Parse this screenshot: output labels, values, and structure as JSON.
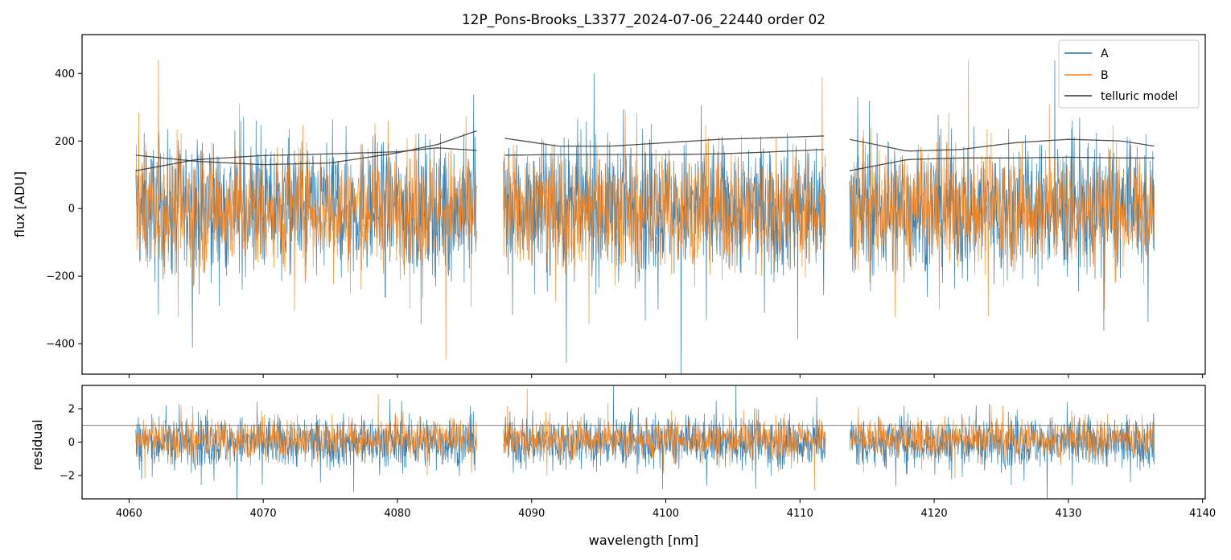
{
  "chart_data": {
    "type": "line",
    "title": "12P_Pons-Brooks_L3377_2024-07-06_22440  order 02",
    "xlabel": "wavelength [nm]",
    "x_ticks": [
      4060,
      4070,
      4080,
      4090,
      4100,
      4110,
      4120,
      4130,
      4140
    ],
    "xlim": [
      4056.5,
      4140.2
    ],
    "segments": [
      [
        4060.5,
        4085.9
      ],
      [
        4087.9,
        4111.9
      ],
      [
        4113.7,
        4136.4
      ]
    ],
    "series_colors": {
      "A": "#1f77b4",
      "B": "#ff7f0e",
      "telluric model": "#333333"
    },
    "legend": {
      "placement": "top-right",
      "entries": [
        "A",
        "B",
        "telluric model"
      ]
    },
    "panels": [
      {
        "name": "flux",
        "ylabel": "flux [ADU]",
        "ylim": [
          -490,
          515
        ],
        "y_ticks": [
          400,
          200,
          0,
          -200,
          -400
        ],
        "y_tick_labels": [
          "400",
          "200",
          "0",
          "−200",
          "−400"
        ],
        "series": [
          {
            "name": "A",
            "color": "#1f77b4",
            "noise_spread": 180,
            "center": 0
          },
          {
            "name": "B",
            "color": "#ff7f0e",
            "noise_spread": 160,
            "center": 0
          }
        ],
        "telluric_model": [
          {
            "segment": 0,
            "x": [
              4060.5,
              4065,
              4070,
              4075,
              4080,
              4083,
              4085.9
            ],
            "y": [
              112,
              145,
              157,
              162,
              168,
              180,
              172
            ]
          },
          {
            "segment": 0,
            "x": [
              4060.5,
              4065,
              4070,
              4075,
              4080,
              4083,
              4085.9
            ],
            "y": [
              158,
              140,
              130,
              135,
              165,
              190,
              230
            ]
          },
          {
            "segment": 1,
            "x": [
              4088,
              4092,
              4096,
              4100,
              4104,
              4108,
              4111.8
            ],
            "y": [
              208,
              185,
              185,
              195,
              205,
              210,
              215
            ]
          },
          {
            "segment": 1,
            "x": [
              4088,
              4092,
              4096,
              4100,
              4104,
              4108,
              4111.8
            ],
            "y": [
              158,
              160,
              160,
              160,
              162,
              168,
              175
            ]
          },
          {
            "segment": 2,
            "x": [
              4113.7,
              4118,
              4122,
              4126,
              4130,
              4134,
              4136.4
            ],
            "y": [
              205,
              170,
              175,
              195,
              205,
              200,
              185
            ]
          },
          {
            "segment": 2,
            "x": [
              4113.7,
              4118,
              4122,
              4126,
              4130,
              4134,
              4136.4
            ],
            "y": [
              112,
              145,
              150,
              150,
              152,
              150,
              150
            ]
          }
        ]
      },
      {
        "name": "residual",
        "ylabel": "residual",
        "ylim": [
          -3.4,
          3.4
        ],
        "y_ticks": [
          2,
          0,
          -2
        ],
        "y_tick_labels": [
          "2",
          "0",
          "−2"
        ],
        "reference_line": 1,
        "series": [
          {
            "name": "A",
            "color": "#1f77b4",
            "noise_spread": 1.4,
            "center": 0
          },
          {
            "name": "B",
            "color": "#ff7f0e",
            "noise_spread": 1.1,
            "center": 0.2
          }
        ]
      }
    ]
  }
}
